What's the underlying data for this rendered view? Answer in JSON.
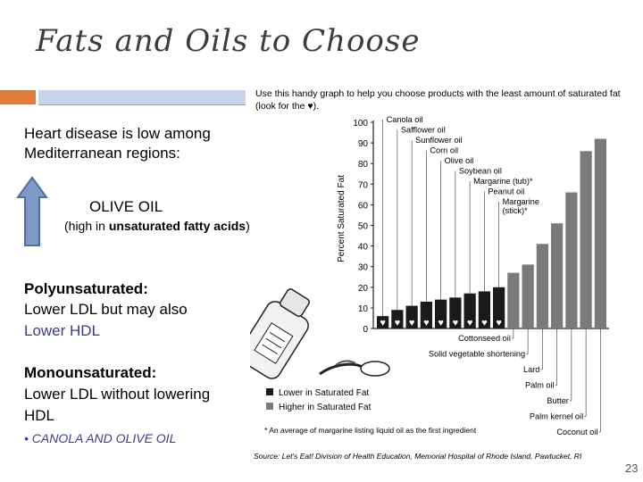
{
  "slide": {
    "title": "Fats and Oils to Choose",
    "line1": "Heart disease is low among",
    "line2": "Mediterranean regions:",
    "olive": "OLIVE OIL",
    "high_prefix": "(high in ",
    "high_bold": "unsaturated fatty acids",
    "high_suffix": ")",
    "poly_title": "Polyunsaturated:",
    "poly_l1": "Lower LDL but may also",
    "poly_l2": "Lower HDL",
    "mono_title": "Monounsaturated:",
    "mono_l1": "Lower LDL without lowering",
    "mono_l2": "HDL",
    "bullet": "• CANOLA AND OLIVE OIL",
    "page_num": "23",
    "colors": {
      "title": "#3c3c3c",
      "accent": "#e07b39",
      "bar": "#c8d3e8",
      "arrow": "#7e9bc8",
      "hdl": "#3b3b8f"
    }
  },
  "chart_data": {
    "type": "bar",
    "header_l1": "Use this handy graph to help you choose products with the least amount of saturated fat",
    "header_l2": "(look for the ♥).",
    "ylabel": "Percent Saturated Fat",
    "ylim": [
      0,
      100
    ],
    "yticks": [
      "0",
      "10",
      "20",
      "30",
      "40",
      "50",
      "60",
      "70",
      "80",
      "90",
      "100"
    ],
    "categories": [
      "Canola oil",
      "Safflower oil",
      "Sunflower oil",
      "Corn oil",
      "Olive oil",
      "Soybean oil",
      "Margarine (tub)*",
      "Peanut oil",
      "Margarine (stick)*",
      "Cottonseed oil",
      "Solid vegetable shortening",
      "Lard",
      "Palm oil",
      "Butter",
      "Palm kernel oil",
      "Coconut oil"
    ],
    "values": [
      6,
      9,
      11,
      13,
      14,
      15,
      17,
      18,
      20,
      27,
      31,
      41,
      51,
      66,
      86,
      92
    ],
    "lower": [
      true,
      true,
      true,
      true,
      true,
      true,
      true,
      true,
      true,
      false,
      false,
      false,
      false,
      false,
      false,
      false
    ],
    "heart": "♥",
    "legend_lower": "Lower in Saturated Fat",
    "legend_higher": "Higher in Saturated Fat",
    "colors": {
      "lower": "#1a1a1a",
      "higher": "#7a7a7a"
    },
    "footnote": "* An average of margarine listing liquid oil as the first ingredient",
    "source": "Source: Let's Eat! Division of Health Education, Memorial Hospital of Rhode Island, Pawtucket, RI"
  }
}
